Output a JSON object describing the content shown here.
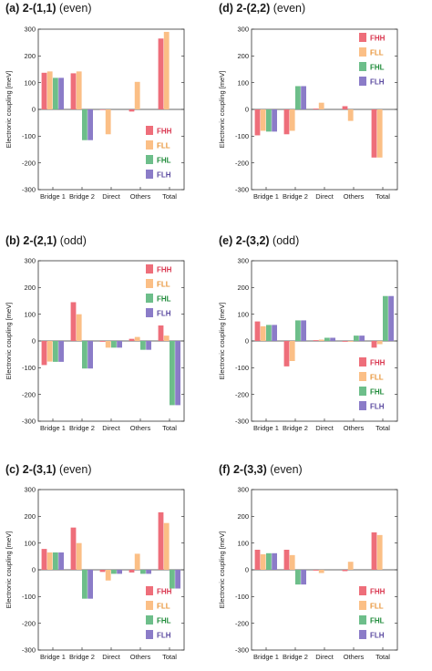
{
  "chart_data": [
    {
      "type": "bar",
      "panel_label": "(a)",
      "title_main": "2-(1,1)",
      "title_note": "(even)",
      "ylabel": "Electronic coupling [meV]",
      "ylim": [
        -300,
        300
      ],
      "yticks": [
        "300",
        "200",
        "100",
        "0",
        "-100",
        "-200",
        "-300"
      ],
      "categories": [
        "Bridge 1",
        "Bridge 2",
        "Direct",
        "Others",
        "Total"
      ],
      "legend_position": "lower-right",
      "series": [
        {
          "name": "FHH",
          "color": "#ee6e7a",
          "legend_color": "#d9364f",
          "values": [
            137,
            135,
            -2,
            -8,
            265
          ]
        },
        {
          "name": "FLL",
          "color": "#fbbf86",
          "legend_color": "#e9953a",
          "values": [
            142,
            142,
            -93,
            103,
            290
          ]
        },
        {
          "name": "FHL",
          "color": "#6dbe8a",
          "legend_color": "#1f8b3a",
          "values": [
            118,
            -115,
            0,
            0,
            0
          ]
        },
        {
          "name": "FLH",
          "color": "#8b7cc8",
          "legend_color": "#5b4aa0",
          "values": [
            118,
            -115,
            0,
            0,
            0
          ]
        }
      ]
    },
    {
      "type": "bar",
      "panel_label": "(d)",
      "title_main": "2-(2,2)",
      "title_note": "(even)",
      "ylabel": "Electronic coupling [meV]",
      "ylim": [
        -300,
        300
      ],
      "yticks": [
        "300",
        "200",
        "100",
        "0",
        "-100",
        "-200",
        "-300"
      ],
      "categories": [
        "Bridge 1",
        "Bridge 2",
        "Direct",
        "Others",
        "Total"
      ],
      "legend_position": "top-right",
      "series": [
        {
          "name": "FHH",
          "color": "#ee6e7a",
          "legend_color": "#d9364f",
          "values": [
            -97,
            -93,
            3,
            12,
            -180
          ]
        },
        {
          "name": "FLL",
          "color": "#fbbf86",
          "legend_color": "#e9953a",
          "values": [
            -80,
            -80,
            25,
            -43,
            -180
          ]
        },
        {
          "name": "FHL",
          "color": "#6dbe8a",
          "legend_color": "#1f8b3a",
          "values": [
            -83,
            87,
            0,
            0,
            0
          ]
        },
        {
          "name": "FLH",
          "color": "#8b7cc8",
          "legend_color": "#5b4aa0",
          "values": [
            -83,
            87,
            0,
            0,
            0
          ]
        }
      ]
    },
    {
      "type": "bar",
      "panel_label": "(b)",
      "title_main": "2-(2,1)",
      "title_note": "(odd)",
      "ylabel": "Electronic coupling [meV]",
      "ylim": [
        -300,
        300
      ],
      "yticks": [
        "300",
        "200",
        "100",
        "0",
        "-100",
        "-200",
        "-300"
      ],
      "categories": [
        "Bridge 1",
        "Bridge 2",
        "Direct",
        "Others",
        "Total"
      ],
      "legend_position": "top-right",
      "series": [
        {
          "name": "FHH",
          "color": "#ee6e7a",
          "legend_color": "#d9364f",
          "values": [
            -90,
            145,
            -3,
            8,
            58
          ]
        },
        {
          "name": "FLL",
          "color": "#fbbf86",
          "legend_color": "#e9953a",
          "values": [
            -77,
            100,
            -25,
            15,
            20
          ]
        },
        {
          "name": "FHL",
          "color": "#6dbe8a",
          "legend_color": "#1f8b3a",
          "values": [
            -78,
            -103,
            -25,
            -33,
            -240
          ]
        },
        {
          "name": "FLH",
          "color": "#8b7cc8",
          "legend_color": "#5b4aa0",
          "values": [
            -78,
            -103,
            -25,
            -33,
            -240
          ]
        }
      ]
    },
    {
      "type": "bar",
      "panel_label": "(e)",
      "title_main": "2-(3,2)",
      "title_note": "(odd)",
      "ylabel": "Electronic coupling [meV]",
      "ylim": [
        -300,
        300
      ],
      "yticks": [
        "300",
        "200",
        "100",
        "0",
        "-100",
        "-200",
        "-300"
      ],
      "categories": [
        "Bridge 1",
        "Bridge 2",
        "Direct",
        "Others",
        "Total"
      ],
      "legend_position": "lower-right",
      "series": [
        {
          "name": "FHH",
          "color": "#ee6e7a",
          "legend_color": "#d9364f",
          "values": [
            73,
            -95,
            3,
            -3,
            -25
          ]
        },
        {
          "name": "FLL",
          "color": "#fbbf86",
          "legend_color": "#e9953a",
          "values": [
            55,
            -75,
            5,
            -3,
            -12
          ]
        },
        {
          "name": "FHL",
          "color": "#6dbe8a",
          "legend_color": "#1f8b3a",
          "values": [
            60,
            77,
            12,
            20,
            168
          ]
        },
        {
          "name": "FLH",
          "color": "#8b7cc8",
          "legend_color": "#5b4aa0",
          "values": [
            60,
            77,
            12,
            20,
            168
          ]
        }
      ]
    },
    {
      "type": "bar",
      "panel_label": "(c)",
      "title_main": "2-(3,1)",
      "title_note": "(even)",
      "ylabel": "Electronic coupling [meV]",
      "ylim": [
        -300,
        300
      ],
      "yticks": [
        "300",
        "200",
        "100",
        "0",
        "-100",
        "-200",
        "-300"
      ],
      "categories": [
        "Bridge 1",
        "Bridge 2",
        "Direct",
        "Others",
        "Total"
      ],
      "legend_position": "lower-right",
      "series": [
        {
          "name": "FHH",
          "color": "#ee6e7a",
          "legend_color": "#d9364f",
          "values": [
            78,
            158,
            -8,
            -10,
            215
          ]
        },
        {
          "name": "FLL",
          "color": "#fbbf86",
          "legend_color": "#e9953a",
          "values": [
            65,
            100,
            -40,
            60,
            175
          ]
        },
        {
          "name": "FHL",
          "color": "#6dbe8a",
          "legend_color": "#1f8b3a",
          "values": [
            65,
            -108,
            -15,
            -15,
            -70
          ]
        },
        {
          "name": "FLH",
          "color": "#8b7cc8",
          "legend_color": "#5b4aa0",
          "values": [
            65,
            -108,
            -15,
            -15,
            -70
          ]
        }
      ]
    },
    {
      "type": "bar",
      "panel_label": "(f)",
      "title_main": "2-(3,3)",
      "title_note": "(even)",
      "ylabel": "Electronic coupling [meV]",
      "ylim": [
        -300,
        300
      ],
      "yticks": [
        "300",
        "200",
        "100",
        "0",
        "-100",
        "-200",
        "-300"
      ],
      "categories": [
        "Bridge 1",
        "Bridge 2",
        "Direct",
        "Others",
        "Total"
      ],
      "legend_position": "lower-right",
      "series": [
        {
          "name": "FHH",
          "color": "#ee6e7a",
          "legend_color": "#d9364f",
          "values": [
            75,
            75,
            -3,
            -5,
            140
          ]
        },
        {
          "name": "FLL",
          "color": "#fbbf86",
          "legend_color": "#e9953a",
          "values": [
            58,
            55,
            -12,
            30,
            130
          ]
        },
        {
          "name": "FHL",
          "color": "#6dbe8a",
          "legend_color": "#1f8b3a",
          "values": [
            62,
            -55,
            0,
            0,
            0
          ]
        },
        {
          "name": "FLH",
          "color": "#8b7cc8",
          "legend_color": "#5b4aa0",
          "values": [
            62,
            -55,
            0,
            0,
            0
          ]
        }
      ]
    }
  ]
}
